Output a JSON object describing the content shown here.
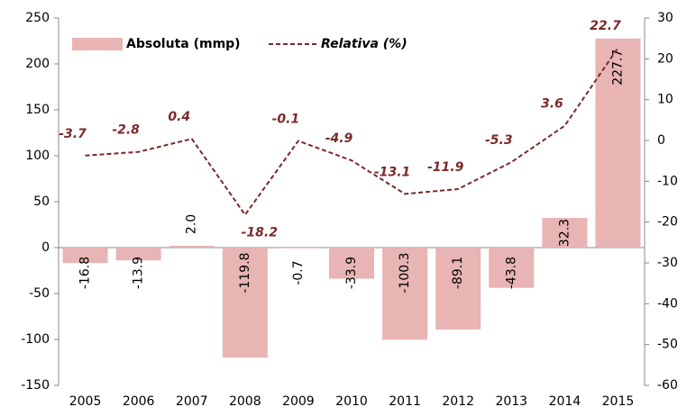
{
  "chart_data": {
    "type": "bar-line",
    "categories": [
      "2005",
      "2006",
      "2007",
      "2008",
      "2009",
      "2010",
      "2011",
      "2012",
      "2013",
      "2014",
      "2015"
    ],
    "series": [
      {
        "name": "Absoluta (mmp)",
        "type": "bar",
        "color": "#e8b4b4",
        "values": [
          -16.8,
          -13.9,
          2.0,
          -119.8,
          -0.7,
          -33.9,
          -100.3,
          -89.1,
          -43.8,
          32.3,
          227.7
        ],
        "value_labels": [
          "-16.8",
          "-13.9",
          "2.0",
          "-119.8",
          "-0.7",
          "-33.9",
          "-100.3",
          "-89.1",
          "-43.8",
          "32.3",
          "227.7"
        ]
      },
      {
        "name": "Relativa (%)",
        "type": "line",
        "axis": "y2",
        "color": "#7b2a2a",
        "values": [
          -3.7,
          -2.8,
          0.4,
          -18.2,
          -0.1,
          -4.9,
          -13.1,
          -11.9,
          -5.3,
          3.6,
          22.7
        ]
      }
    ],
    "ylim": [
      -150,
      250
    ],
    "yticks": [
      -150,
      -100,
      -50,
      0,
      50,
      100,
      150,
      200,
      250
    ],
    "y2lim": [
      -60,
      30
    ],
    "y2ticks": [
      -60,
      -50,
      -40,
      -30,
      -20,
      -10,
      0,
      10,
      20,
      30
    ],
    "legend": "top-left"
  }
}
